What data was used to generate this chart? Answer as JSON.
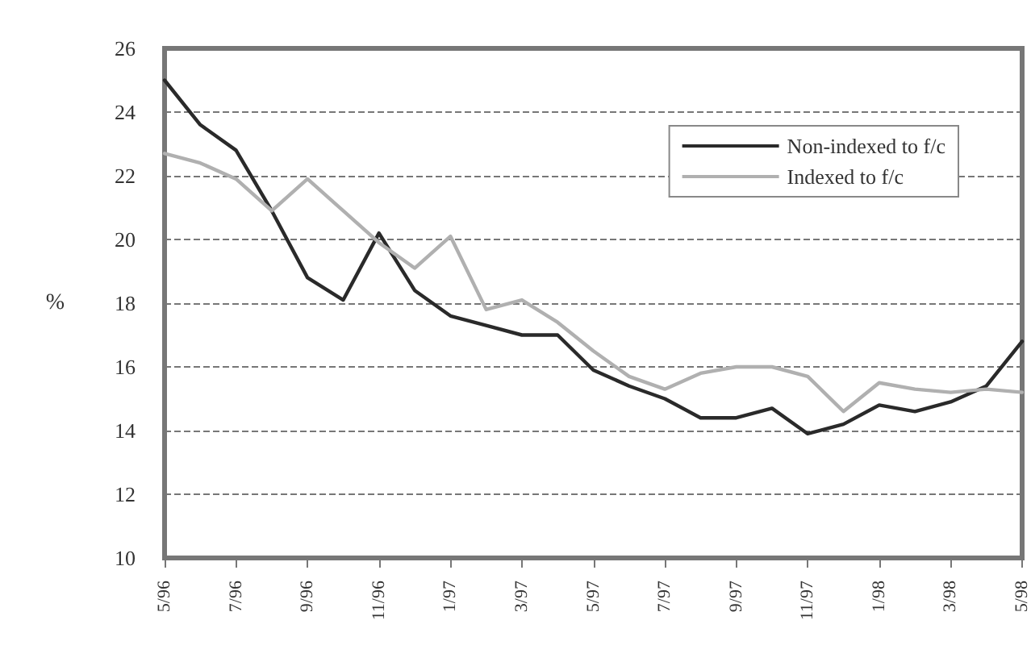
{
  "chart_data": {
    "type": "line",
    "ylabel": "%",
    "categories": [
      "5/96",
      null,
      "7/96",
      null,
      "9/96",
      null,
      "11/96",
      null,
      "1/97",
      null,
      "3/97",
      null,
      "5/97",
      null,
      "7/97",
      null,
      "9/97",
      null,
      "11/97",
      null,
      "1/98",
      null,
      "3/98",
      null,
      "5/98"
    ],
    "series": [
      {
        "name": "Non-indexed to f/c",
        "color": "#2a2a2a",
        "values": [
          25.0,
          23.6,
          22.8,
          20.9,
          18.8,
          18.1,
          20.2,
          18.4,
          17.6,
          17.3,
          17.0,
          17.0,
          15.9,
          15.4,
          15.0,
          14.4,
          14.4,
          14.7,
          13.9,
          14.2,
          14.8,
          14.6,
          14.9,
          15.4,
          16.8
        ]
      },
      {
        "name": "Indexed to f/c",
        "color": "#b0b0b0",
        "values": [
          22.7,
          22.4,
          21.9,
          20.9,
          21.9,
          20.9,
          19.9,
          19.1,
          20.1,
          17.8,
          18.1,
          17.4,
          16.5,
          15.7,
          15.3,
          15.8,
          16.0,
          16.0,
          15.7,
          14.6,
          15.5,
          15.3,
          15.2,
          15.3,
          15.2
        ]
      }
    ],
    "ylim": [
      10,
      26
    ],
    "yticks": [
      10,
      12,
      14,
      16,
      18,
      20,
      22,
      24,
      26
    ],
    "grid": "y",
    "legend": "top right",
    "marker": "none",
    "line_style": "solid"
  }
}
